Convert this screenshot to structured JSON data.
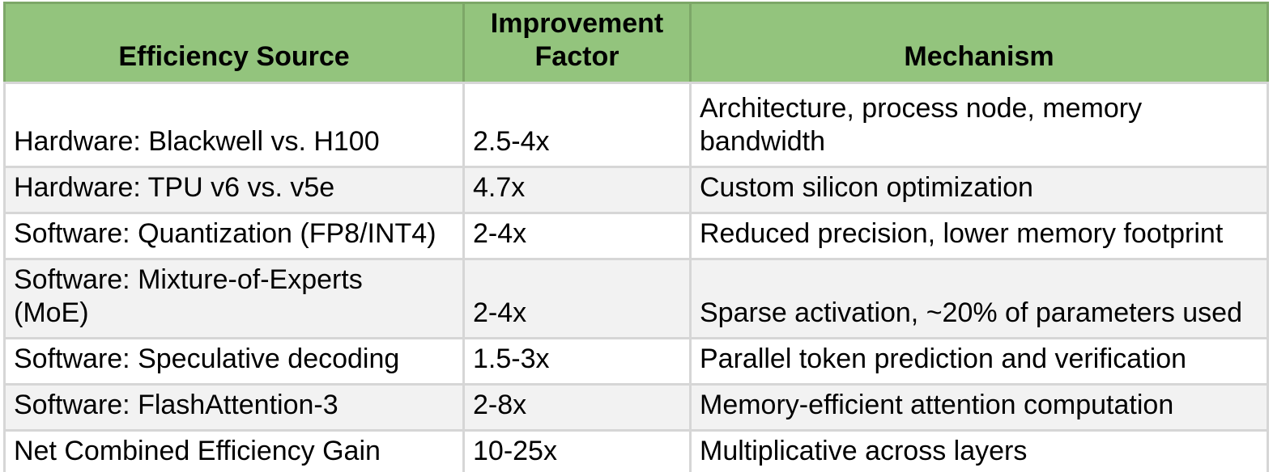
{
  "colors": {
    "header_bg": "#93c47d",
    "header_border": "#7da768",
    "body_border": "#d6d6d6",
    "row_bg": "#ffffff",
    "row_alt_bg": "#f2f2f2",
    "text": "#000000"
  },
  "table": {
    "header": {
      "source": "Efficiency Source",
      "factor": "Improvement Factor",
      "mechanism": "Mechanism"
    },
    "rows": [
      {
        "source": "Hardware: Blackwell vs. H100",
        "factor": "2.5-4x",
        "mechanism": "Architecture, process node, memory\nbandwidth"
      },
      {
        "source": "Hardware: TPU v6 vs. v5e",
        "factor": "4.7x",
        "mechanism": "Custom silicon optimization"
      },
      {
        "source": "Software: Quantization (FP8/INT4)",
        "factor": "2-4x",
        "mechanism": "Reduced precision, lower memory footprint"
      },
      {
        "source": "Software: Mixture-of-Experts\n(MoE)",
        "factor": "2-4x",
        "mechanism": "Sparse activation, ~20% of parameters used"
      },
      {
        "source": "Software: Speculative decoding",
        "factor": "1.5-3x",
        "mechanism": "Parallel token prediction and verification"
      },
      {
        "source": "Software: FlashAttention-3",
        "factor": "2-8x",
        "mechanism": "Memory-efficient attention computation"
      },
      {
        "source": "Net Combined Efficiency Gain",
        "factor": "10-25x",
        "mechanism": "Multiplicative across layers"
      }
    ]
  }
}
